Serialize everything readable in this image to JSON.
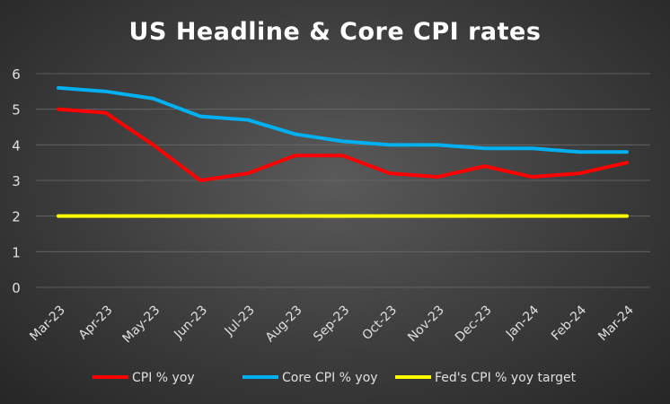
{
  "chart_data": {
    "type": "line",
    "title": "US Headline & Core CPI rates",
    "categories": [
      "Mar-23",
      "Apr-23",
      "May-23",
      "Jun-23",
      "Jul-23",
      "Aug-23",
      "Sep-23",
      "Oct-23",
      "Nov-23",
      "Dec-23",
      "Jan-24",
      "Feb-24",
      "Mar-24"
    ],
    "series": [
      {
        "name": "CPI % yoy",
        "color": "#ff0000",
        "values": [
          5.0,
          4.9,
          4.0,
          3.0,
          3.2,
          3.7,
          3.7,
          3.2,
          3.1,
          3.4,
          3.1,
          3.2,
          3.5
        ]
      },
      {
        "name": "Core CPI % yoy",
        "color": "#00b0f0",
        "values": [
          5.6,
          5.5,
          5.3,
          4.8,
          4.7,
          4.3,
          4.1,
          4.0,
          4.0,
          3.9,
          3.9,
          3.8,
          3.8
        ]
      },
      {
        "name": "Fed's CPI % yoy target",
        "color": "#ffff00",
        "values": [
          2,
          2,
          2,
          2,
          2,
          2,
          2,
          2,
          2,
          2,
          2,
          2,
          2
        ]
      }
    ],
    "yticks": [
      0,
      1,
      2,
      3,
      4,
      5,
      6
    ],
    "ylim": [
      0,
      6
    ],
    "xlabel": "",
    "ylabel": "",
    "grid": true,
    "legend": "bottom"
  }
}
